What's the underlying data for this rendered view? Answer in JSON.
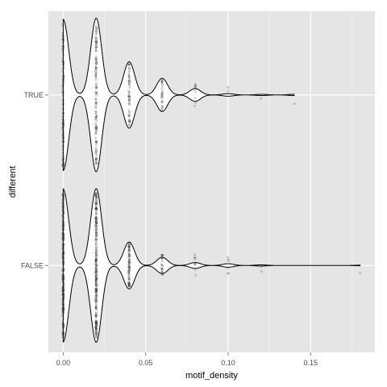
{
  "chart_data": {
    "type": "violin",
    "xlabel": "motif_density",
    "ylabel": "different",
    "xlim": [
      -0.009,
      0.189
    ],
    "x_ticks": [
      0.0,
      0.05,
      0.1,
      0.15
    ],
    "x_tick_labels": [
      "0.00",
      "0.05",
      "0.10",
      "0.15"
    ],
    "categories": [
      "FALSE",
      "TRUE"
    ],
    "grid": true,
    "panel_background": "#e5e5e5",
    "grid_color": "#ffffff",
    "outline_color": "#000000",
    "point_color": "#333333",
    "bandwidth": 0.0033,
    "groups": [
      {
        "category": "FALSE",
        "observations": [
          {
            "x": 0.0,
            "n": 260
          },
          {
            "x": 0.02,
            "n": 262
          },
          {
            "x": 0.04,
            "n": 80
          },
          {
            "x": 0.06,
            "n": 28
          },
          {
            "x": 0.08,
            "n": 10
          },
          {
            "x": 0.1,
            "n": 6
          },
          {
            "x": 0.12,
            "n": 2
          },
          {
            "x": 0.18,
            "n": 1
          }
        ]
      },
      {
        "category": "TRUE",
        "observations": [
          {
            "x": 0.0,
            "n": 118
          },
          {
            "x": 0.02,
            "n": 120
          },
          {
            "x": 0.04,
            "n": 52
          },
          {
            "x": 0.06,
            "n": 26
          },
          {
            "x": 0.08,
            "n": 10
          },
          {
            "x": 0.1,
            "n": 2
          },
          {
            "x": 0.12,
            "n": 1
          },
          {
            "x": 0.14,
            "n": 1
          }
        ]
      }
    ]
  }
}
